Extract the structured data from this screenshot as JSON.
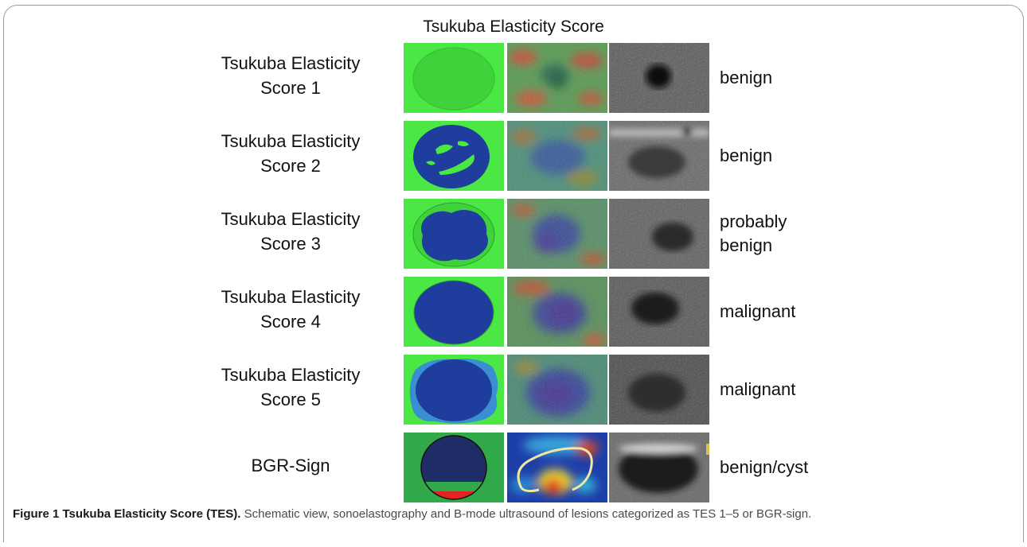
{
  "figure_title": "Tsukuba Elasticity Score",
  "rows": [
    {
      "label_line1": "Tsukuba Elasticity",
      "label_line2": "Score 1",
      "category": "benign"
    },
    {
      "label_line1": "Tsukuba Elasticity",
      "label_line2": "Score 2",
      "category": "benign"
    },
    {
      "label_line1": "Tsukuba Elasticity",
      "label_line2": "Score 3",
      "category_line1": "probably",
      "category_line2": "benign"
    },
    {
      "label_line1": "Tsukuba Elasticity",
      "label_line2": "Score 4",
      "category": "malignant"
    },
    {
      "label_line1": "Tsukuba Elasticity",
      "label_line2": "Score 5",
      "category": "malignant"
    },
    {
      "label": "BGR-Sign",
      "category": "benign/cyst"
    }
  ],
  "caption": {
    "label": "Figure 1 Tsukuba Elasticity Score (TES).",
    "text": " Schematic view, sonoelastography and B-mode ultrasound of lesions categorized as TES 1–5 or BGR-sign."
  },
  "colors": {
    "schematic_green": "#4be845",
    "schematic_blue": "#1e3d9c",
    "bgr_dark_blue": "#1e2d66",
    "bgr_background": "#31a84a",
    "bgr_red": "#e0251e",
    "score5_halo": "#3a8fd0"
  }
}
